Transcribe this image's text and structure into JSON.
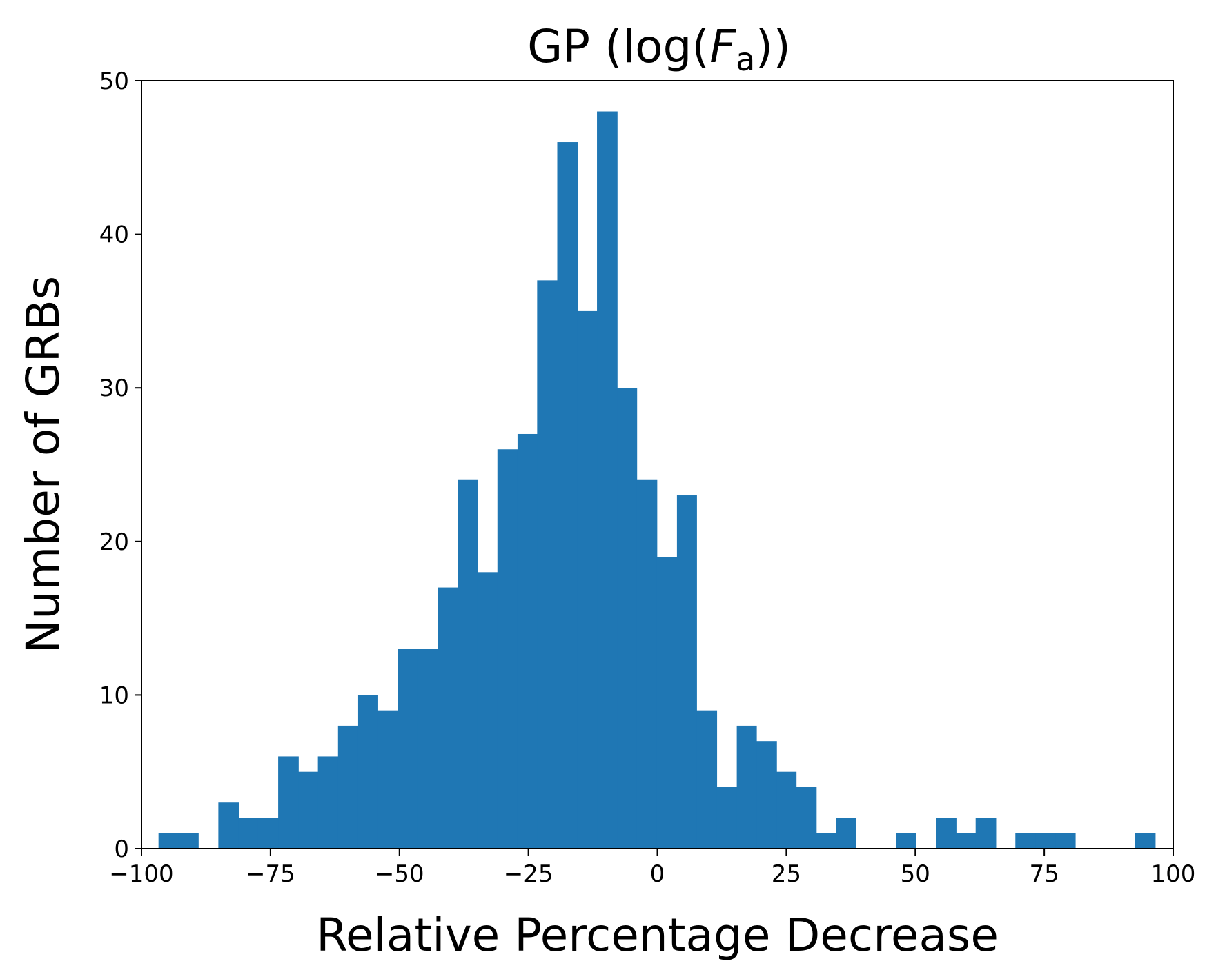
{
  "chart_data": {
    "type": "bar",
    "title": "GP (log(",
    "title_math_var": "F",
    "title_math_sub": "a",
    "title_close": "))",
    "xlabel": "Relative Percentage Decrease",
    "ylabel": "Number of GRBs",
    "xlim": [
      -100,
      100
    ],
    "ylim": [
      0,
      50
    ],
    "x_ticks": [
      -100,
      -75,
      -50,
      -25,
      0,
      25,
      50,
      75,
      100
    ],
    "x_tick_labels": [
      "−100",
      "−75",
      "−50",
      "−25",
      "0",
      "25",
      "50",
      "75",
      "100"
    ],
    "y_ticks": [
      0,
      10,
      20,
      30,
      40,
      50
    ],
    "y_tick_labels": [
      "0",
      "10",
      "20",
      "30",
      "40",
      "50"
    ],
    "grid": false,
    "bar_color": "#1f77b4",
    "bins": [
      {
        "x0": -96.7,
        "x1": -92.8,
        "count": 1
      },
      {
        "x0": -92.8,
        "x1": -89.0,
        "count": 1
      },
      {
        "x0": -89.0,
        "x1": -85.1,
        "count": 0
      },
      {
        "x0": -85.1,
        "x1": -81.2,
        "count": 3
      },
      {
        "x0": -81.2,
        "x1": -77.4,
        "count": 2
      },
      {
        "x0": -77.4,
        "x1": -73.5,
        "count": 2
      },
      {
        "x0": -73.5,
        "x1": -69.6,
        "count": 6
      },
      {
        "x0": -69.6,
        "x1": -65.8,
        "count": 5
      },
      {
        "x0": -65.8,
        "x1": -61.9,
        "count": 6
      },
      {
        "x0": -61.9,
        "x1": -58.0,
        "count": 8
      },
      {
        "x0": -58.0,
        "x1": -54.2,
        "count": 10
      },
      {
        "x0": -54.2,
        "x1": -50.3,
        "count": 9
      },
      {
        "x0": -50.3,
        "x1": -46.5,
        "count": 13
      },
      {
        "x0": -46.5,
        "x1": -42.6,
        "count": 13
      },
      {
        "x0": -42.6,
        "x1": -38.7,
        "count": 17
      },
      {
        "x0": -38.7,
        "x1": -34.9,
        "count": 24
      },
      {
        "x0": -34.9,
        "x1": -31.0,
        "count": 18
      },
      {
        "x0": -31.0,
        "x1": -27.1,
        "count": 26
      },
      {
        "x0": -27.1,
        "x1": -23.3,
        "count": 27
      },
      {
        "x0": -23.3,
        "x1": -19.4,
        "count": 37
      },
      {
        "x0": -19.4,
        "x1": -15.5,
        "count": 46
      },
      {
        "x0": -15.5,
        "x1": -11.7,
        "count": 35
      },
      {
        "x0": -11.7,
        "x1": -7.8,
        "count": 48
      },
      {
        "x0": -7.8,
        "x1": -4.0,
        "count": 30
      },
      {
        "x0": -4.0,
        "x1": -0.1,
        "count": 24
      },
      {
        "x0": -0.1,
        "x1": 3.8,
        "count": 19
      },
      {
        "x0": 3.8,
        "x1": 7.6,
        "count": 23
      },
      {
        "x0": 7.6,
        "x1": 11.5,
        "count": 9
      },
      {
        "x0": 11.5,
        "x1": 15.4,
        "count": 4
      },
      {
        "x0": 15.4,
        "x1": 19.2,
        "count": 8
      },
      {
        "x0": 19.2,
        "x1": 23.1,
        "count": 7
      },
      {
        "x0": 23.1,
        "x1": 26.9,
        "count": 5
      },
      {
        "x0": 26.9,
        "x1": 30.8,
        "count": 4
      },
      {
        "x0": 30.8,
        "x1": 34.7,
        "count": 1
      },
      {
        "x0": 34.7,
        "x1": 38.5,
        "count": 2
      },
      {
        "x0": 38.5,
        "x1": 42.4,
        "count": 0
      },
      {
        "x0": 42.4,
        "x1": 46.3,
        "count": 0
      },
      {
        "x0": 46.3,
        "x1": 50.1,
        "count": 1
      },
      {
        "x0": 50.1,
        "x1": 54.0,
        "count": 0
      },
      {
        "x0": 54.0,
        "x1": 57.9,
        "count": 2
      },
      {
        "x0": 57.9,
        "x1": 61.7,
        "count": 1
      },
      {
        "x0": 61.7,
        "x1": 65.6,
        "count": 2
      },
      {
        "x0": 65.6,
        "x1": 69.4,
        "count": 0
      },
      {
        "x0": 69.4,
        "x1": 73.3,
        "count": 1
      },
      {
        "x0": 73.3,
        "x1": 77.2,
        "count": 1
      },
      {
        "x0": 77.2,
        "x1": 81.0,
        "count": 1
      },
      {
        "x0": 81.0,
        "x1": 84.9,
        "count": 0
      },
      {
        "x0": 84.9,
        "x1": 88.8,
        "count": 0
      },
      {
        "x0": 88.8,
        "x1": 92.6,
        "count": 0
      },
      {
        "x0": 92.6,
        "x1": 96.5,
        "count": 1
      }
    ]
  }
}
